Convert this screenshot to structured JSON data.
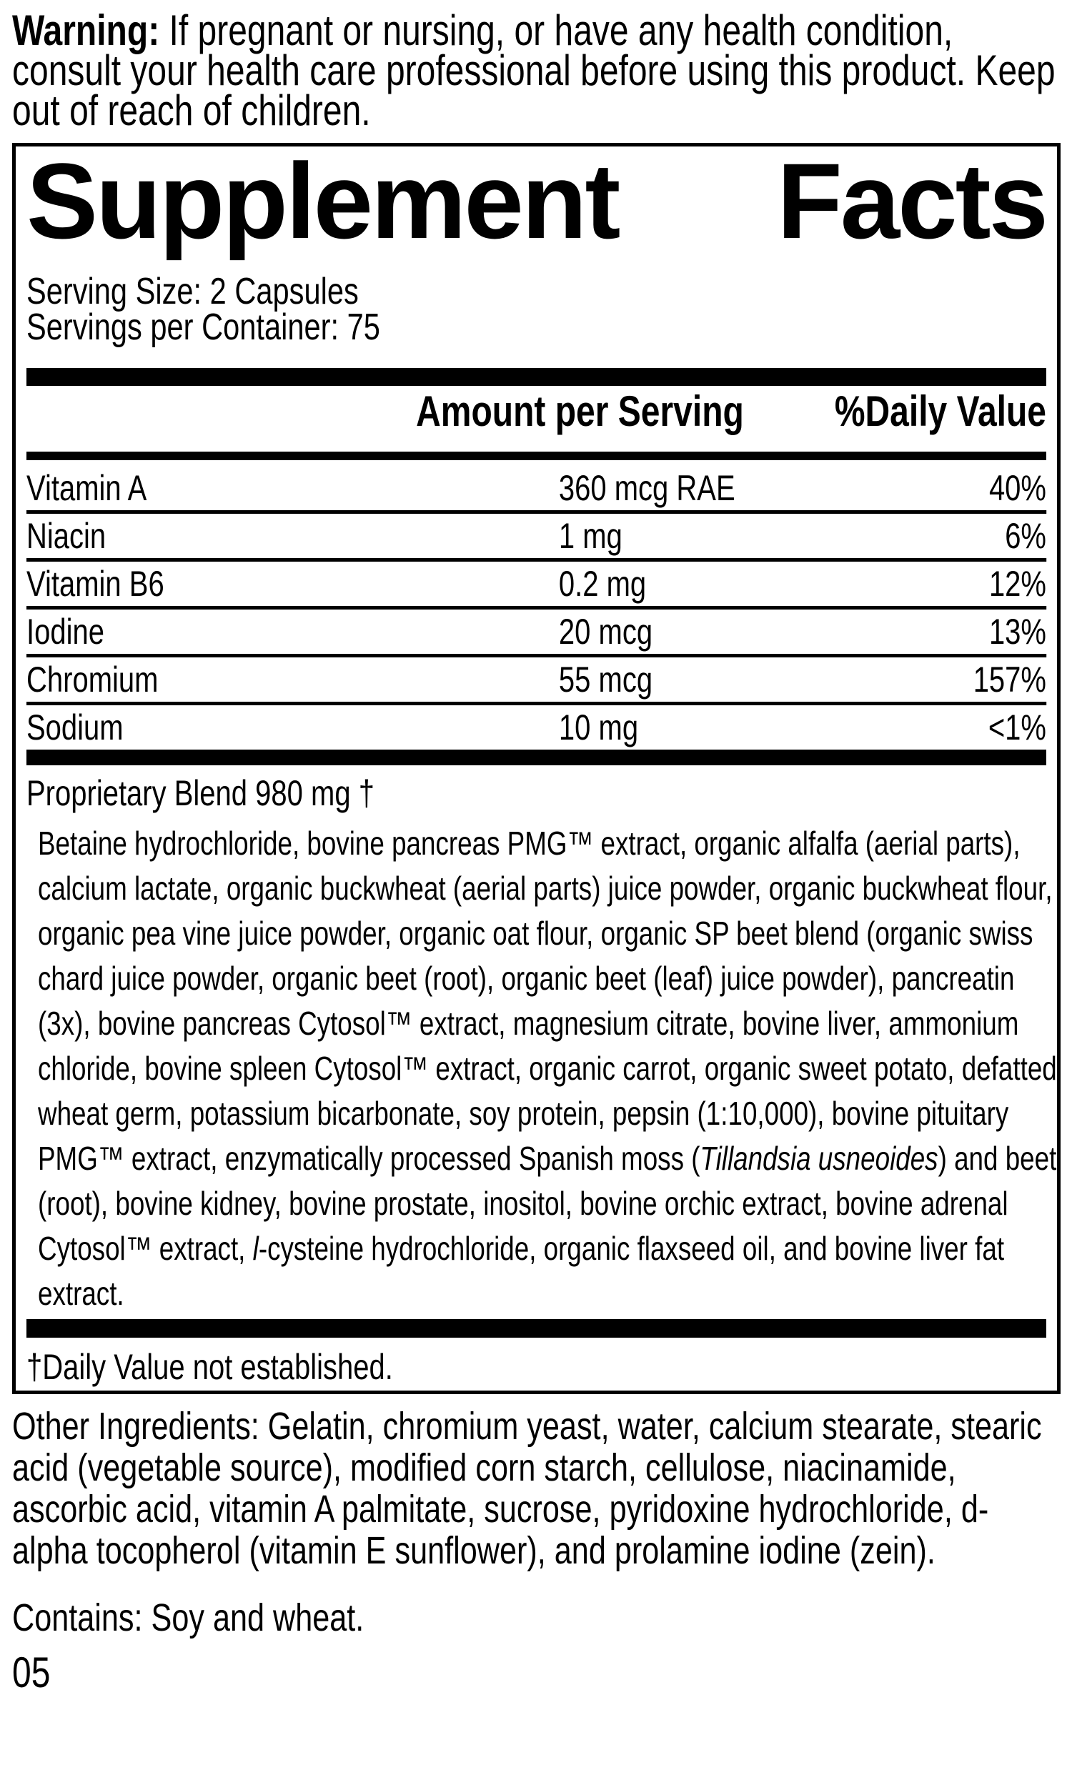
{
  "warning": {
    "label": "Warning:",
    "text": " If pregnant or nursing, or have any health condition, consult your health care professional before using this product. Keep out of reach of children."
  },
  "panel": {
    "title_left": "Supplement",
    "title_right": "Facts",
    "serving_size": "Serving Size: 2 Capsules",
    "servings_per_container": "Servings per Container: 75",
    "columns": {
      "amount": "Amount per Serving",
      "daily_value": "%Daily Value"
    },
    "nutrients": [
      {
        "name": "Vitamin A",
        "amount": "360 mcg RAE",
        "daily_value": "40%"
      },
      {
        "name": "Niacin",
        "amount": "1 mg",
        "daily_value": "6%"
      },
      {
        "name": "Vitamin B6",
        "amount": "0.2 mg",
        "daily_value": "12%"
      },
      {
        "name": "Iodine",
        "amount": "20 mcg",
        "daily_value": "13%"
      },
      {
        "name": "Chromium",
        "amount": "55 mcg",
        "daily_value": "157%"
      },
      {
        "name": "Sodium",
        "amount": "10 mg",
        "daily_value": "<1%"
      }
    ],
    "proprietary_blend": {
      "name": "Proprietary Blend",
      "amount": "980 mg",
      "daily_value": "†"
    },
    "blend_segments": [
      {
        "t": "Betaine hydrochloride, bovine pancreas PMG™ extract, organic alfalfa (aerial parts), calcium lactate, organic buckwheat (aerial parts) juice powder, organic buckwheat flour, organic pea vine juice powder, organic oat flour, organic SP beet blend (organic swiss chard juice powder, organic beet (root), organic beet (leaf) juice powder), pancreatin (3x), bovine pancreas Cytosol™ extract, magnesium citrate, bovine liver, ammonium chloride, bovine spleen Cytosol™ extract, organic carrot, organic sweet potato, defatted wheat germ, potassium bicarbonate, soy protein, pepsin (1:10,000), bovine pituitary PMG™ extract, enzymatically processed Spanish moss ("
      },
      {
        "t": "Tillandsia usneoides",
        "s": "i"
      },
      {
        "t": ") and beet (root), bovine kidney, bovine prostate, inositol, bovine orchic extract, bovine adrenal Cytosol™ extract, "
      },
      {
        "t": "l",
        "s": "i"
      },
      {
        "t": "-cysteine hydrochloride, organic flaxseed oil, and bovine liver fat extract."
      }
    ],
    "footnote": "†Daily Value not established."
  },
  "other_ingredients": "Other Ingredients: Gelatin, chromium yeast, water, calcium stearate, stearic acid (vegetable source), modified corn starch, cellulose, niacinamide, ascorbic acid, vitamin A palmitate, sucrose, pyridoxine hydrochloride, d-alpha tocopherol (vitamin E sunflower), and prolamine iodine (zein).",
  "contains": "Contains: Soy and wheat.",
  "page_number": "05"
}
